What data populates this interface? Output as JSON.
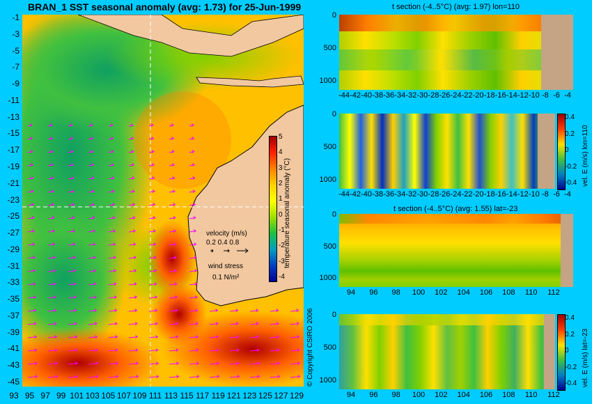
{
  "map": {
    "title": "BRAN_1 SST seasonal anomaly (avg: 1.73) for 25-Jun-1999",
    "lat_ticks": [
      "-1",
      "-3",
      "-5",
      "-7",
      "-9",
      "-11",
      "-13",
      "-15",
      "-17",
      "-19",
      "-21",
      "-23",
      "-25",
      "-27",
      "-29",
      "-31",
      "-33",
      "-35",
      "-37",
      "-39",
      "-41",
      "-43",
      "-45"
    ],
    "lon_ticks": [
      "93",
      "95",
      "97",
      "99",
      "101",
      "103",
      "105",
      "107",
      "109",
      "111",
      "113",
      "115",
      "117",
      "119",
      "121",
      "123",
      "125",
      "127",
      "129"
    ],
    "colorbar_label": "temperature seasonal anomaly (°C)",
    "colorbar_ticks": [
      "5",
      "4",
      "3",
      "2",
      "1",
      "0",
      "-1",
      "-2",
      "-3",
      "-4"
    ],
    "velocity_label": "velocity (m/s)",
    "velocity_scale": "0.2 0.4 0.8",
    "wind_label": "wind stress",
    "wind_scale": "0.1 N/m²",
    "copyright": "© Copyright CSIRO 2006"
  },
  "panels": [
    {
      "title": "t section (-4..5°C) (avg: 1.97) lon=110",
      "y_ticks": [
        "0",
        "500",
        "1000"
      ],
      "x_ticks": [
        "-44",
        "-42",
        "-40",
        "-38",
        "-36",
        "-34",
        "-32",
        "-30",
        "-28",
        "-26",
        "-24",
        "-22",
        "-20",
        "-18",
        "-16",
        "-14",
        "-12",
        "-10",
        "-8",
        "-6",
        "-4"
      ],
      "cb_label": "",
      "cb_ticks": []
    },
    {
      "title": "",
      "y_ticks": [
        "0",
        "500",
        "1000"
      ],
      "x_ticks": [
        "-44",
        "-42",
        "-40",
        "-38",
        "-36",
        "-34",
        "-32",
        "-30",
        "-28",
        "-26",
        "-24",
        "-22",
        "-20",
        "-18",
        "-16",
        "-14",
        "-12",
        "-10",
        "-8",
        "-6",
        "-4"
      ],
      "cb_label": "vel. E (m/s) lon=110",
      "cb_ticks": [
        "0.4",
        "0.2",
        "0",
        "-0.2",
        "-0.4"
      ]
    },
    {
      "title": "t section (-4..5°C) (avg: 1.55) lat=-23",
      "y_ticks": [
        "0",
        "500",
        "1000"
      ],
      "x_ticks": [
        "94",
        "96",
        "98",
        "100",
        "102",
        "104",
        "106",
        "108",
        "110",
        "112"
      ],
      "cb_label": "",
      "cb_ticks": []
    },
    {
      "title": "",
      "y_ticks": [
        "0",
        "500",
        "1000"
      ],
      "x_ticks": [
        "94",
        "96",
        "98",
        "100",
        "102",
        "104",
        "106",
        "108",
        "110",
        "112"
      ],
      "cb_label": "vel. E (m/s) lat=-23",
      "cb_ticks": [
        "0.4",
        "0.2",
        "0",
        "-0.2",
        "-0.4"
      ]
    }
  ],
  "colors": {
    "background": "#00ccff",
    "land": "#f2c8a0",
    "section_land": "#c4a484",
    "arrows": "#ff00ff"
  },
  "chart_data": [
    {
      "type": "heatmap",
      "title": "BRAN_1 SST seasonal anomaly (avg: 1.73) for 25-Jun-1999",
      "x_range": [
        93,
        130
      ],
      "y_range": [
        -45,
        0
      ],
      "colorbar_range": [
        -4,
        5
      ],
      "avg": 1.73
    },
    {
      "type": "heatmap",
      "title": "t section (-4..5°C) (avg: 1.97) lon=110",
      "x_range": [
        -45,
        -3
      ],
      "y_range": [
        1050,
        0
      ],
      "colorbar_range": [
        -4,
        5
      ],
      "avg": 1.97
    },
    {
      "type": "heatmap",
      "title": "",
      "x_range": [
        -45,
        -3
      ],
      "y_range": [
        1050,
        0
      ],
      "colorbar_range": [
        -0.5,
        0.5
      ]
    },
    {
      "type": "heatmap",
      "title": "t section (-4..5°C) (avg: 1.55) lat=-23",
      "x_range": [
        92.8,
        114
      ],
      "y_range": [
        1050,
        0
      ],
      "colorbar_range": [
        -4,
        5
      ],
      "avg": 1.55
    },
    {
      "type": "heatmap",
      "title": "",
      "x_range": [
        92.8,
        114
      ],
      "y_range": [
        1050,
        0
      ],
      "colorbar_range": [
        -0.5,
        0.5
      ]
    }
  ]
}
